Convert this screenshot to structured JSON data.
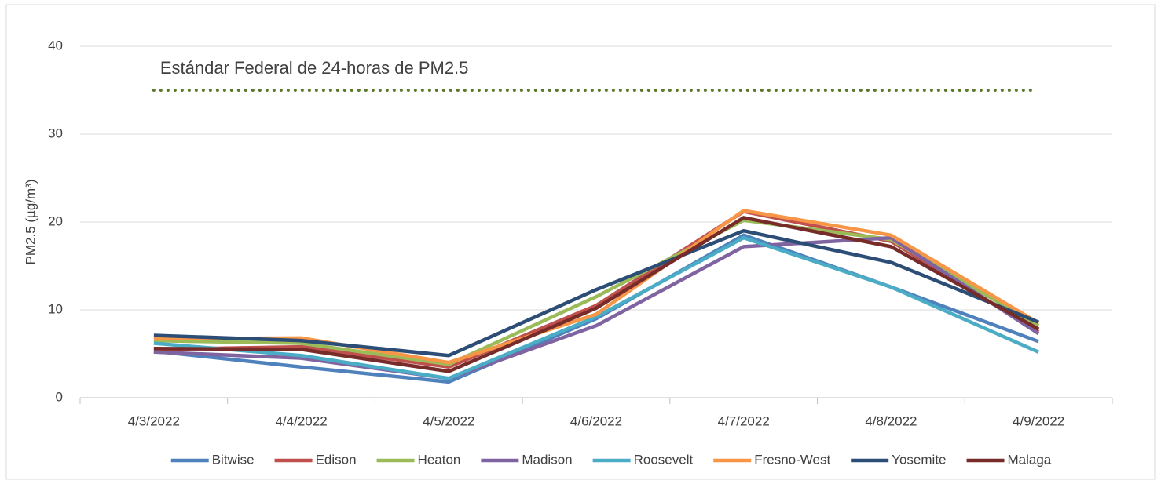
{
  "chart_data": {
    "type": "line",
    "y_label": "PM2.5 (µg/m³)",
    "categories": [
      "4/3/2022",
      "4/4/2022",
      "4/5/2022",
      "4/6/2022",
      "4/7/2022",
      "4/8/2022",
      "4/9/2022"
    ],
    "series": [
      {
        "name": "Bitwise",
        "color": "#4f81bd",
        "values": [
          5.3,
          3.5,
          1.8,
          9.0,
          18.5,
          12.6,
          6.4
        ]
      },
      {
        "name": "Edison",
        "color": "#c0504d",
        "values": [
          5.5,
          5.8,
          3.5,
          10.5,
          21.2,
          17.8,
          7.5
        ]
      },
      {
        "name": "Heaton",
        "color": "#9bbb59",
        "values": [
          6.5,
          6.2,
          3.8,
          11.5,
          20.2,
          18.0,
          8.2
        ]
      },
      {
        "name": "Madison",
        "color": "#8064a2",
        "values": [
          5.2,
          4.5,
          2.2,
          8.2,
          17.2,
          18.2,
          7.3
        ]
      },
      {
        "name": "Roosevelt",
        "color": "#4bacc6",
        "values": [
          6.2,
          4.8,
          2.2,
          9.2,
          18.2,
          12.6,
          5.2
        ]
      },
      {
        "name": "Fresno-West",
        "color": "#f79646",
        "values": [
          6.7,
          6.8,
          4.0,
          9.5,
          21.3,
          18.5,
          8.5
        ]
      },
      {
        "name": "Yosemite",
        "color": "#2c4d75",
        "values": [
          7.1,
          6.5,
          4.8,
          12.3,
          19.0,
          15.4,
          8.6
        ]
      },
      {
        "name": "Malaga",
        "color": "#772c2a",
        "values": [
          5.6,
          5.5,
          3.0,
          10.2,
          20.5,
          17.2,
          7.8
        ]
      }
    ],
    "annotation": {
      "text": "Estándar Federal de 24-horas de PM2.5",
      "value": 35,
      "color": "#5a7a2a"
    },
    "ylim": [
      0,
      40
    ],
    "yticks": [
      0,
      10,
      20,
      30,
      40
    ],
    "grid": true,
    "legend": "bottom"
  }
}
